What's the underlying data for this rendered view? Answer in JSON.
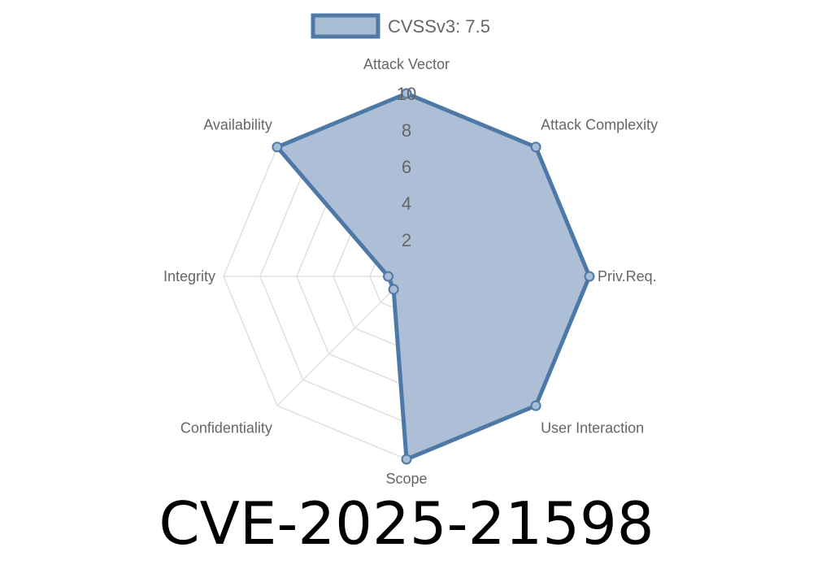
{
  "chart_data": {
    "type": "radar",
    "title": "CVE-2025-21598",
    "axes": [
      "Attack Vector",
      "Attack Complexity",
      "Priv.Req.",
      "User Interaction",
      "Scope",
      "Confidentiality",
      "Integrity",
      "Availability"
    ],
    "series": [
      {
        "name": "CVSSv3: 7.5",
        "values": [
          10,
          10,
          10,
          10,
          10,
          1,
          1,
          10
        ]
      }
    ],
    "rlim": [
      0,
      10
    ],
    "ticks": [
      "2",
      "4",
      "6",
      "8",
      "10"
    ],
    "tick_values": [
      2,
      4,
      6,
      8,
      10
    ],
    "grid": true,
    "legend_position": "top",
    "colors": {
      "line": "#4e79a7",
      "fill": "#a8bcd4",
      "grid": "#e0e0e0"
    }
  }
}
